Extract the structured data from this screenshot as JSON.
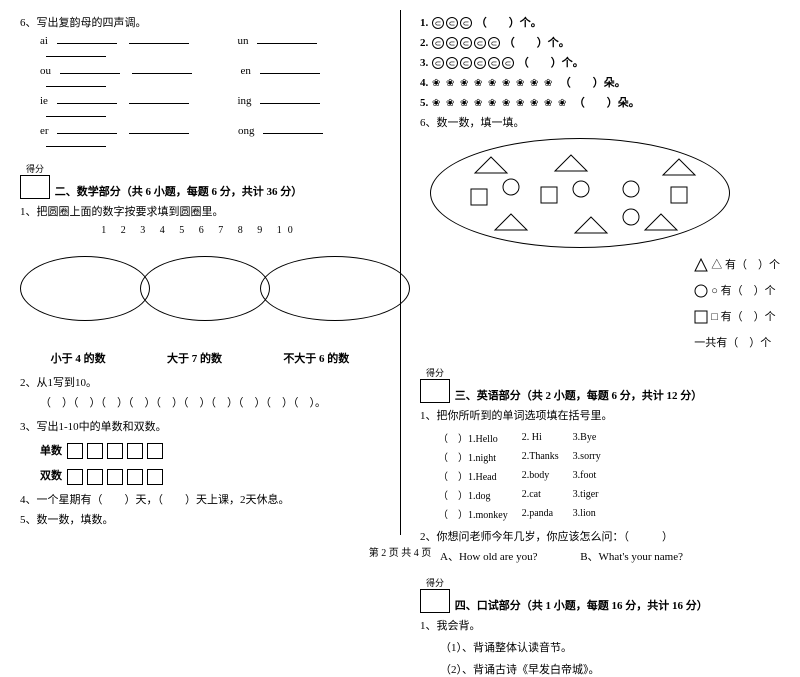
{
  "leftCol": {
    "q6": "6、写出复韵母的四声调。",
    "pinyinRows": [
      [
        "ai",
        "un"
      ],
      [
        "ou",
        "en"
      ],
      [
        "ie",
        "ing"
      ],
      [
        "er",
        "ong"
      ]
    ],
    "scoreLabel": "得分",
    "section2Title": "二、数学部分（共 6 小题，每题 6 分，共计 36 分）",
    "s2q1": "1、把圆圈上面的数字按要求填到圆圈里。",
    "numbers": "1 2 3 4 5 6 7 8 9 10",
    "ovalLabels": [
      "小于 4 的数",
      "大于 7 的数",
      "不大于 6 的数"
    ],
    "s2q2": "2、从1写到10。",
    "s2q2line": "（　）（　）（　）（　）（　）（　）（　）（　）（　）（　）。",
    "s2q3": "3、写出1-10中的单数和双数。",
    "s2q3odd": "单数",
    "s2q3even": "双数",
    "s2q4": "4、一个星期有（　　）天，（　　）天上课，2天休息。",
    "s2q5": "5、数一数，填数。"
  },
  "rightCol": {
    "countLines": [
      {
        "n": "1.",
        "icons": 3,
        "unit": "（　　）个。"
      },
      {
        "n": "2.",
        "icons": 5,
        "unit": "（　　）个。"
      },
      {
        "n": "3.",
        "icons": 6,
        "unit": "（　　）个。"
      },
      {
        "n": "4.",
        "icons": 9,
        "unit": "（　　）朵。"
      },
      {
        "n": "5.",
        "icons": 10,
        "unit": "（　　）朵。"
      }
    ],
    "s2q6": "6、数一数，填一填。",
    "shapeCounts": [
      {
        "label": "△ 有（　）个"
      },
      {
        "label": "○ 有（　）个"
      },
      {
        "label": "□ 有（　）个"
      },
      {
        "label": "一共有（　）个"
      }
    ],
    "triangles": [
      [
        60,
        18
      ],
      [
        140,
        16
      ],
      [
        248,
        20
      ],
      [
        80,
        75
      ],
      [
        160,
        78
      ],
      [
        230,
        75
      ]
    ],
    "squares": [
      [
        40,
        50
      ],
      [
        110,
        48
      ],
      [
        240,
        48
      ]
    ],
    "circles": [
      [
        80,
        48
      ],
      [
        150,
        50
      ],
      [
        200,
        50
      ],
      [
        200,
        78
      ]
    ],
    "scoreLabel": "得分",
    "section3Title": "三、英语部分（共 2 小题，每题 6 分，共计 12 分）",
    "s3q1": "1、把你所听到的单词选项填在括号里。",
    "englishRows": [
      [
        "（　）1.Hello",
        "2. Hi",
        "3.Bye"
      ],
      [
        "（　）1.night",
        "2.Thanks",
        "3.sorry"
      ],
      [
        "（　）1.Head",
        "2.body",
        "3.foot"
      ],
      [
        "（　）1.dog",
        "2.cat",
        "3.tiger"
      ],
      [
        "（　）1.monkey",
        "2.panda",
        "3.lion"
      ]
    ],
    "s3q2": "2、你想问老师今年几岁，你应该怎么问：（　　　）",
    "s3q2a": "A、How old are you?",
    "s3q2b": "B、What's your name?",
    "section4Title": "四、口试部分（共 1 小题，每题 16 分，共计 16 分）",
    "s4q1": "1、我会背。",
    "s4q1a": "（1）、背诵整体认读音节。",
    "s4q1b": "（2）、背诵古诗《早发白帝城》。"
  },
  "footer": "第 2 页 共 4 页"
}
